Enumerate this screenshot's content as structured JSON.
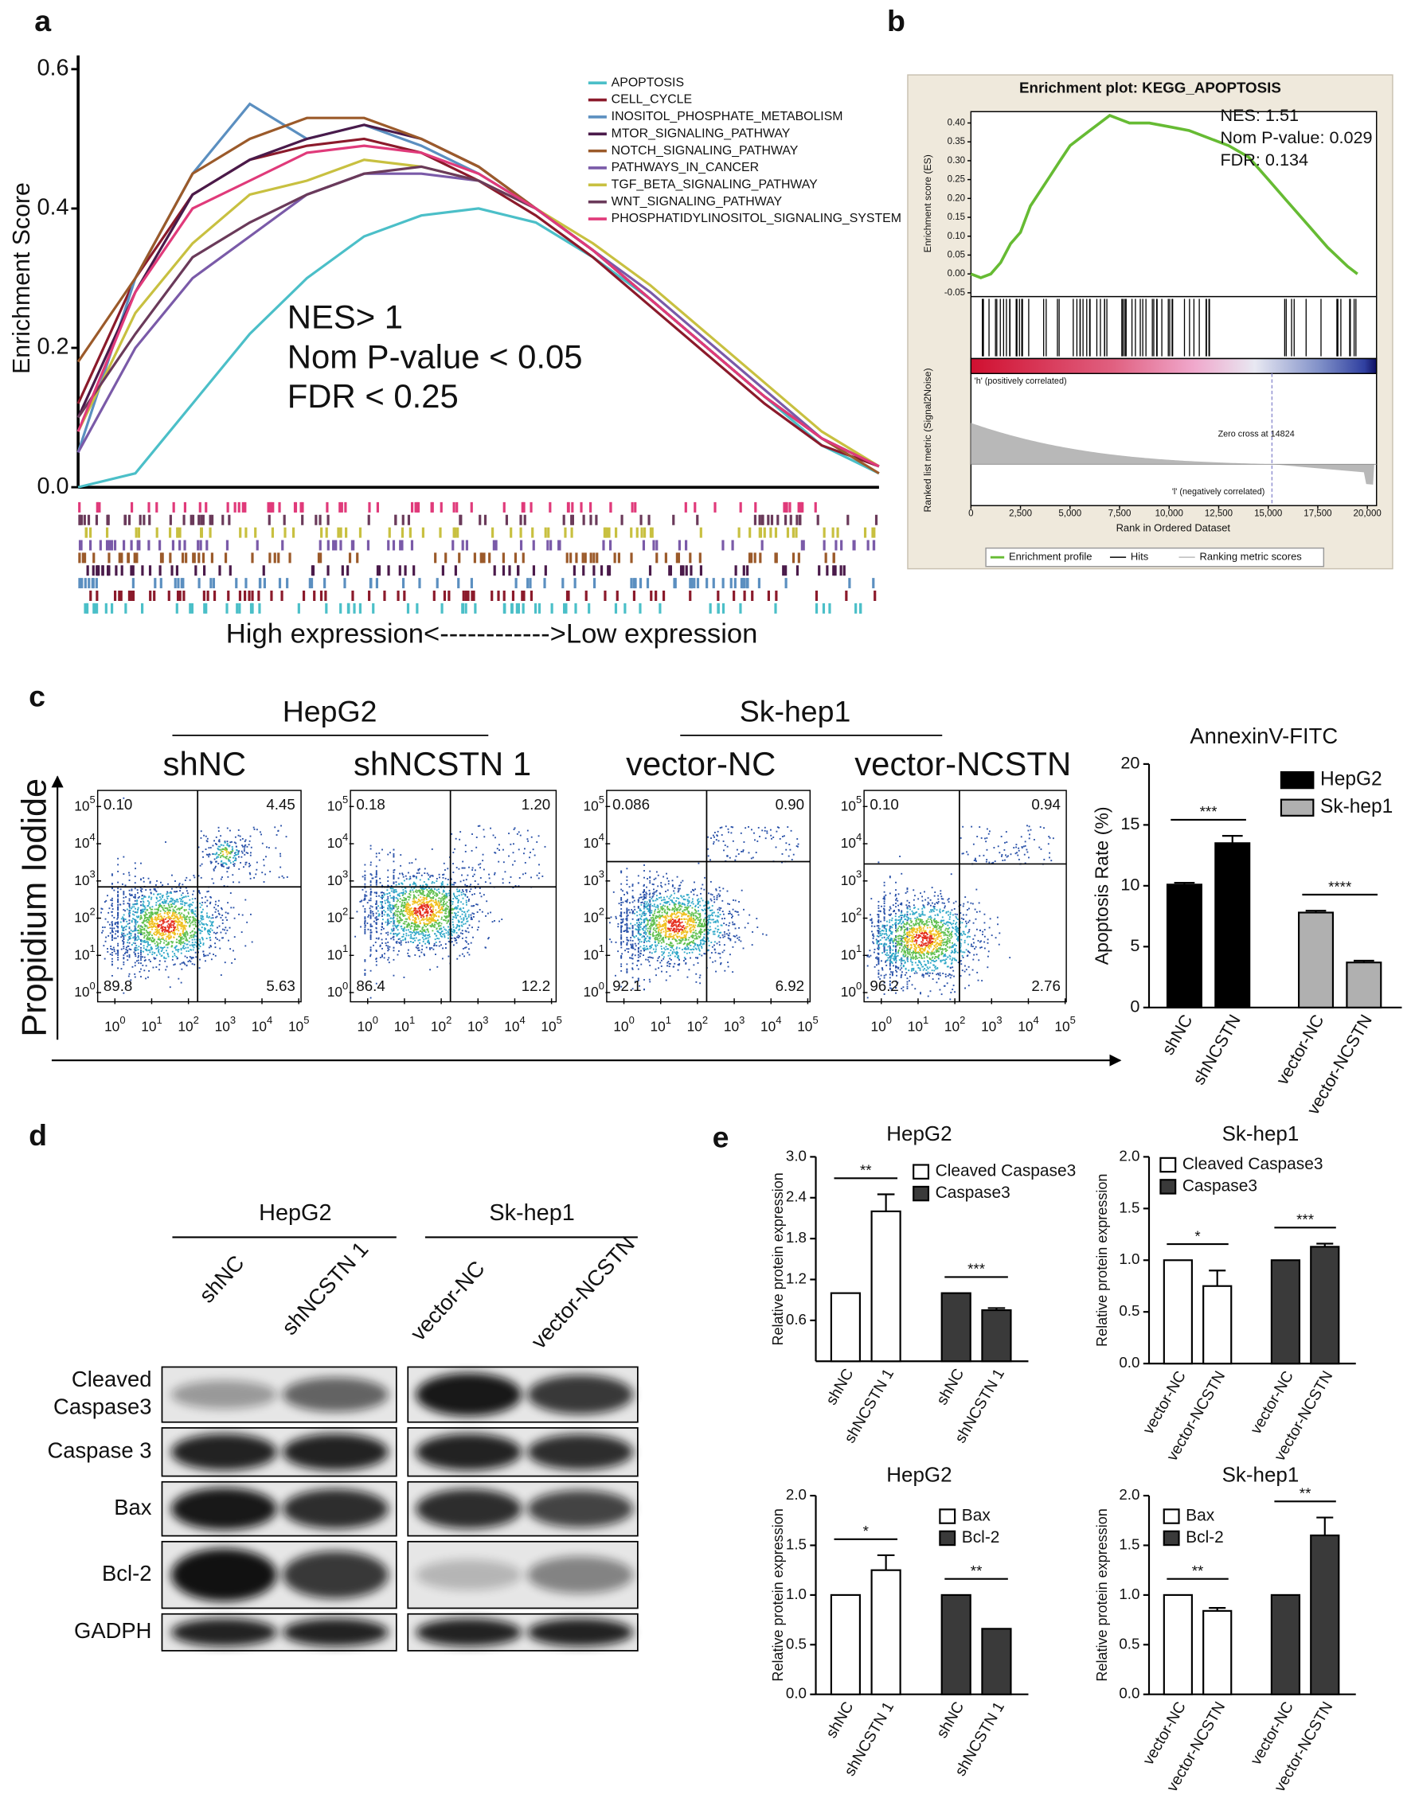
{
  "panel_labels": [
    "a",
    "b",
    "c",
    "d",
    "e"
  ],
  "chart_data": [
    {
      "type": "line",
      "ylabel": "Enrichment Score",
      "xlabel": "High expression<------------>Low expression",
      "annotations": [
        "NES> 1",
        "Nom P-value < 0.05",
        "FDR < 0.25"
      ],
      "ylim": [
        0,
        0.6
      ],
      "yticks": [
        {
          "value": 0,
          "label": "0.0"
        },
        0.2,
        0.4,
        0.6
      ],
      "series": [
        {
          "name": "APOPTOSIS",
          "color": "#4bbfc8",
          "values": [
            0.0,
            0.02,
            0.12,
            0.22,
            0.3,
            0.36,
            0.39,
            0.4,
            0.38,
            0.33,
            0.27,
            0.2,
            0.13,
            0.06,
            0.02
          ]
        },
        {
          "name": "CELL_CYCLE",
          "color": "#8b1a2b",
          "values": [
            0.12,
            0.3,
            0.42,
            0.47,
            0.49,
            0.5,
            0.48,
            0.44,
            0.39,
            0.33,
            0.26,
            0.19,
            0.12,
            0.06,
            0.03
          ]
        },
        {
          "name": "INOSITOL_PHOSPHATE_METABOLISM",
          "color": "#5b8fc0",
          "values": [
            0.05,
            0.3,
            0.45,
            0.55,
            0.5,
            0.52,
            0.49,
            0.45,
            0.4,
            0.34,
            0.27,
            0.2,
            0.13,
            0.07,
            0.03
          ]
        },
        {
          "name": "MTOR_SIGNALING_PATHWAY",
          "color": "#4a1a4a",
          "values": [
            0.1,
            0.28,
            0.42,
            0.47,
            0.5,
            0.52,
            0.5,
            0.46,
            0.4,
            0.34,
            0.27,
            0.2,
            0.13,
            0.07,
            0.03
          ]
        },
        {
          "name": "NOTCH_SIGNALING_PATHWAY",
          "color": "#9b5a2a",
          "values": [
            0.18,
            0.3,
            0.45,
            0.5,
            0.53,
            0.53,
            0.5,
            0.46,
            0.4,
            0.34,
            0.27,
            0.2,
            0.13,
            0.07,
            0.02
          ]
        },
        {
          "name": "PATHWAYS_IN_CANCER",
          "color": "#7a5aa8",
          "values": [
            0.05,
            0.2,
            0.3,
            0.36,
            0.42,
            0.45,
            0.45,
            0.44,
            0.4,
            0.34,
            0.28,
            0.21,
            0.14,
            0.07,
            0.03
          ]
        },
        {
          "name": "TGF_BETA_SIGNALING_PATHWAY",
          "color": "#c8c040",
          "values": [
            0.08,
            0.25,
            0.35,
            0.42,
            0.44,
            0.47,
            0.46,
            0.44,
            0.4,
            0.35,
            0.29,
            0.22,
            0.15,
            0.08,
            0.03
          ]
        },
        {
          "name": "WNT_SIGNALING_PATHWAY",
          "color": "#6a3a5a",
          "values": [
            0.1,
            0.22,
            0.33,
            0.38,
            0.42,
            0.45,
            0.46,
            0.44,
            0.4,
            0.34,
            0.27,
            0.2,
            0.13,
            0.07,
            0.03
          ]
        },
        {
          "name": "PHOSPHATIDYLINOSITOL_SIGNALING_SYSTEM",
          "color": "#e03a7a",
          "values": [
            0.08,
            0.28,
            0.4,
            0.44,
            0.48,
            0.49,
            0.48,
            0.45,
            0.4,
            0.34,
            0.27,
            0.2,
            0.13,
            0.07,
            0.03
          ]
        }
      ]
    },
    {
      "type": "enrichment",
      "title": "Enrichment plot: KEGG_APOPTOSIS",
      "annotations": [
        "NES: 1.51",
        "Nom P-value: 0.029",
        "FDR: 0.134"
      ],
      "ylabel": "Enrichment score (ES)",
      "ylabel2": "Ranked list metric (Signal2Noise)",
      "xlabel": "Rank in Ordered Dataset",
      "notes": [
        "'h' (positively correlated)",
        "Zero cross at 14824",
        "'l' (negatively correlated)"
      ],
      "legend_extra": [
        "Hits",
        "Ranking metric scores"
      ],
      "xlim": [
        0,
        20000
      ],
      "ylim": [
        -0.06,
        0.43
      ],
      "xticks": [
        0,
        {
          "value": 2500,
          "label": "2,500"
        },
        {
          "value": 5000,
          "label": "5,000"
        },
        {
          "value": 7500,
          "label": "7,500"
        },
        {
          "value": 10000,
          "label": "10,000"
        },
        {
          "value": 12500,
          "label": "12,500"
        },
        {
          "value": 15000,
          "label": "15,000"
        },
        {
          "value": 17500,
          "label": "17,500"
        },
        {
          "value": 20000,
          "label": "20,000"
        }
      ],
      "yticks": [
        {
          "value": 0.4,
          "label": "0.40"
        },
        0.35,
        {
          "value": 0.3,
          "label": "0.30"
        },
        0.25,
        {
          "value": 0.2,
          "label": "0.20"
        },
        0.15,
        {
          "value": 0.1,
          "label": "0.10"
        },
        0.05,
        {
          "value": 0,
          "label": "0.00"
        },
        -0.05
      ],
      "series": [
        {
          "name": "Enrichment profile",
          "color": "#66bb33",
          "x": [
            0,
            500,
            1000,
            1500,
            2000,
            2500,
            3000,
            3500,
            4000,
            4500,
            5000,
            5500,
            6000,
            6500,
            7000,
            7500,
            8000,
            9000,
            10000,
            11000,
            12000,
            13000,
            14000,
            15000,
            16000,
            17000,
            18000,
            19000,
            19500
          ],
          "values": [
            0,
            -0.01,
            0.0,
            0.03,
            0.08,
            0.11,
            0.18,
            0.22,
            0.26,
            0.3,
            0.34,
            0.36,
            0.38,
            0.4,
            0.42,
            0.41,
            0.4,
            0.4,
            0.39,
            0.38,
            0.36,
            0.34,
            0.31,
            0.25,
            0.19,
            0.13,
            0.07,
            0.02,
            0.0
          ]
        }
      ]
    },
    {
      "type": "bar",
      "title": "AnnexinV-FITC",
      "ylabel": "Apoptosis Rate (%)",
      "categories": [
        "shNC",
        "shNCSTN",
        "vector-NC",
        "vector-NCSTN"
      ],
      "series": [
        {
          "name": "HepG2",
          "color": "#000000",
          "values": [
            10.1,
            13.5,
            null,
            null
          ],
          "errors": [
            0.15,
            0.6,
            null,
            null
          ]
        },
        {
          "name": "Sk-hep1",
          "color": "#b0b0b0",
          "values": [
            null,
            null,
            7.8,
            3.7
          ],
          "errors": [
            null,
            null,
            0.15,
            0.15
          ]
        }
      ],
      "significance": [
        "***",
        "****"
      ],
      "ylim": [
        0,
        20
      ],
      "yticks": [
        0,
        5,
        10,
        15,
        20
      ]
    },
    {
      "type": "bar",
      "title": "HepG2",
      "ylabel": "Relative protein expression",
      "categories": [
        "shNC",
        "shNCSTN 1",
        "shNC",
        "shNCSTN 1"
      ],
      "series": [
        {
          "name": "Cleaved Caspase3",
          "color": "#ffffff",
          "values": [
            1.0,
            2.2,
            null,
            null
          ],
          "errors": [
            null,
            0.25,
            null,
            null
          ]
        },
        {
          "name": "Caspase3",
          "color": "#3a3a3a",
          "values": [
            null,
            null,
            1.0,
            0.75
          ],
          "errors": [
            null,
            null,
            null,
            0.03
          ]
        }
      ],
      "significance": [
        "**",
        "***"
      ],
      "ylim": [
        0,
        3
      ],
      "yticks": [
        0.6,
        1.2,
        1.8,
        2.4,
        {
          "value": 3,
          "label": "3.0"
        }
      ]
    },
    {
      "type": "bar",
      "title": "Sk-hep1",
      "ylabel": "Relative protein expression",
      "categories": [
        "vector-NC",
        "vector-NCSTN",
        "vector-NC",
        "vector-NCSTN"
      ],
      "series": [
        {
          "name": "Cleaved Caspase3",
          "color": "#ffffff",
          "values": [
            1.0,
            0.75,
            null,
            null
          ],
          "errors": [
            null,
            0.15,
            null,
            null
          ]
        },
        {
          "name": "Caspase3",
          "color": "#3a3a3a",
          "values": [
            null,
            null,
            1.0,
            1.13
          ],
          "errors": [
            null,
            null,
            null,
            0.03
          ]
        }
      ],
      "significance": [
        "*",
        "***"
      ],
      "ylim": [
        0,
        2
      ],
      "yticks": [
        {
          "value": 0,
          "label": "0.0"
        },
        0.5,
        {
          "value": 1,
          "label": "1.0"
        },
        1.5,
        {
          "value": 2,
          "label": "2.0"
        }
      ]
    },
    {
      "type": "bar",
      "title": "HepG2",
      "ylabel": "Relative protein expression",
      "categories": [
        "shNC",
        "shNCSTN 1",
        "shNC",
        "shNCSTN 1"
      ],
      "series": [
        {
          "name": "Bax",
          "color": "#ffffff",
          "values": [
            1.0,
            1.25,
            null,
            null
          ],
          "errors": [
            null,
            0.15,
            null,
            null
          ]
        },
        {
          "name": "Bcl-2",
          "color": "#3a3a3a",
          "values": [
            null,
            null,
            1.0,
            0.66
          ],
          "errors": [
            null,
            null,
            null,
            null
          ]
        }
      ],
      "significance": [
        "*",
        "**"
      ],
      "ylim": [
        0,
        2
      ],
      "yticks": [
        {
          "value": 0,
          "label": "0.0"
        },
        0.5,
        {
          "value": 1,
          "label": "1.0"
        },
        1.5,
        {
          "value": 2,
          "label": "2.0"
        }
      ]
    },
    {
      "type": "bar",
      "title": "Sk-hep1",
      "ylabel": "Relative protein expression",
      "categories": [
        "vector-NC",
        "vector-NCSTN",
        "vector-NC",
        "vector-NCSTN"
      ],
      "series": [
        {
          "name": "Bax",
          "color": "#ffffff",
          "values": [
            1.0,
            0.84,
            null,
            null
          ],
          "errors": [
            null,
            0.03,
            null,
            null
          ]
        },
        {
          "name": "Bcl-2",
          "color": "#3a3a3a",
          "values": [
            null,
            null,
            1.0,
            1.6
          ],
          "errors": [
            null,
            null,
            null,
            0.18
          ]
        }
      ],
      "significance": [
        "**",
        "**"
      ],
      "ylim": [
        0,
        2
      ],
      "yticks": [
        {
          "value": 0,
          "label": "0.0"
        },
        0.5,
        {
          "value": 1,
          "label": "1.0"
        },
        1.5,
        {
          "value": 2,
          "label": "2.0"
        }
      ]
    }
  ],
  "flow_cytometry": {
    "ylabel": "Propidium Iodide",
    "groups": [
      "HepG2",
      "Sk-hep1"
    ],
    "tick_base": "10",
    "tick_exponents": [
      0,
      1,
      2,
      3,
      4,
      5
    ],
    "plots": [
      {
        "label": "shNC",
        "quadrants": [
          "0.10",
          "4.45",
          "89.8",
          "5.63"
        ]
      },
      {
        "label": "shNCSTN 1",
        "quadrants": [
          "0.18",
          "1.20",
          "86.4",
          "12.2"
        ]
      },
      {
        "label": "vector-NC",
        "quadrants": [
          "0.086",
          "0.90",
          "92.1",
          "6.92"
        ]
      },
      {
        "label": "vector-NCSTN",
        "quadrants": [
          "0.10",
          "0.94",
          "96.2",
          "2.76"
        ]
      }
    ]
  },
  "western_blot": {
    "groups": [
      "HepG2",
      "Sk-hep1"
    ],
    "lanes": [
      "shNC",
      "shNCSTN 1",
      "vector-NC",
      "vector-NCSTN"
    ],
    "rows": [
      [
        "Cleaved",
        "Caspase3"
      ],
      [
        "Caspase 3"
      ],
      [
        "Bax"
      ],
      [
        "Bcl-2"
      ],
      [
        "GADPH"
      ]
    ]
  }
}
